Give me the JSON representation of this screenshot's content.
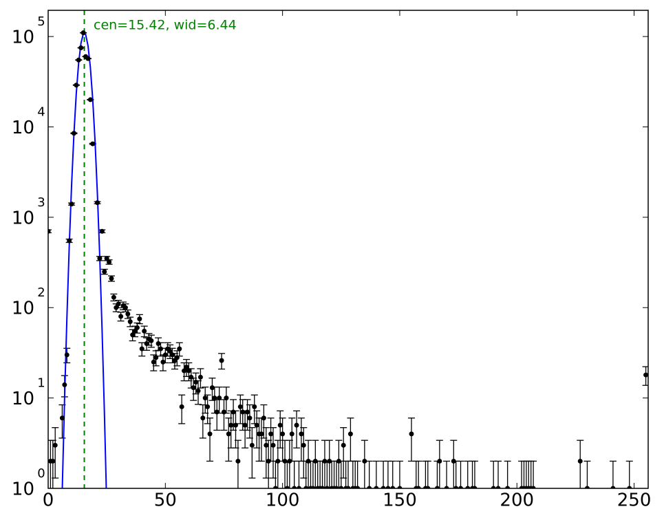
{
  "chart_data": {
    "type": "errorbar",
    "annotation": "cen=15.42, wid=6.44",
    "annotation_color": "#008000",
    "vline": {
      "x": 15.42,
      "color": "#008000"
    },
    "log_y": true,
    "xlim": [
      0,
      256
    ],
    "ylim": [
      1,
      195000
    ],
    "xticks": [
      0,
      50,
      100,
      150,
      200,
      250
    ],
    "yticks": [
      {
        "value": 1,
        "label": "10",
        "exponent": "0"
      },
      {
        "value": 10,
        "label": "10",
        "exponent": "1"
      },
      {
        "value": 100,
        "label": "10",
        "exponent": "2"
      },
      {
        "value": 1000,
        "label": "10",
        "exponent": "3"
      },
      {
        "value": 10000,
        "label": "10",
        "exponent": "4"
      },
      {
        "value": 100000,
        "label": "10",
        "exponent": "5"
      }
    ],
    "color": "#000000",
    "points": [
      [
        0,
        700,
        26.5
      ],
      [
        1,
        2,
        1.4
      ],
      [
        2,
        2,
        1.4
      ],
      [
        3,
        3,
        1.7
      ],
      [
        6,
        6,
        2.4
      ],
      [
        7,
        14,
        3.7
      ],
      [
        8,
        30,
        5.5
      ],
      [
        9,
        550,
        23.5
      ],
      [
        10,
        1400,
        37.4
      ],
      [
        11,
        8500,
        92.2
      ],
      [
        12,
        29000,
        170
      ],
      [
        13,
        55000,
        235
      ],
      [
        14,
        75000,
        274
      ],
      [
        15,
        110000,
        332
      ],
      [
        16,
        60000,
        245
      ],
      [
        17,
        57000,
        239
      ],
      [
        18,
        20000,
        141
      ],
      [
        19,
        6500,
        80.6
      ],
      [
        21,
        1450,
        38.1
      ],
      [
        22,
        350,
        18.7
      ],
      [
        23,
        700,
        26.5
      ],
      [
        24,
        250,
        15.8
      ],
      [
        25,
        350,
        18.7
      ],
      [
        26,
        320,
        17.9
      ],
      [
        27,
        210,
        14.5
      ],
      [
        28,
        130,
        11.4
      ],
      [
        29,
        100,
        10
      ],
      [
        30,
        110,
        10.5
      ],
      [
        31,
        80,
        8.9
      ],
      [
        32,
        105,
        10.2
      ],
      [
        33,
        100,
        10
      ],
      [
        34,
        85,
        9.2
      ],
      [
        35,
        70,
        8.4
      ],
      [
        36,
        50,
        7.1
      ],
      [
        37,
        55,
        7.4
      ],
      [
        38,
        60,
        7.7
      ],
      [
        39,
        75,
        8.7
      ],
      [
        40,
        35,
        5.9
      ],
      [
        41,
        55,
        7.4
      ],
      [
        42,
        40,
        6.3
      ],
      [
        43,
        45,
        6.7
      ],
      [
        44,
        43,
        6.6
      ],
      [
        45,
        25,
        5
      ],
      [
        46,
        28,
        5.3
      ],
      [
        47,
        40,
        6.3
      ],
      [
        48,
        35,
        5.9
      ],
      [
        49,
        25,
        5
      ],
      [
        50,
        30,
        5.5
      ],
      [
        51,
        35,
        5.9
      ],
      [
        52,
        33,
        5.7
      ],
      [
        53,
        30,
        5.5
      ],
      [
        54,
        26,
        5.1
      ],
      [
        55,
        28,
        5.3
      ],
      [
        56,
        35,
        5.9
      ],
      [
        57,
        8,
        2.8
      ],
      [
        58,
        20,
        4.5
      ],
      [
        59,
        22,
        4.7
      ],
      [
        60,
        20,
        4.5
      ],
      [
        61,
        17,
        4.1
      ],
      [
        62,
        13,
        3.6
      ],
      [
        63,
        15,
        3.9
      ],
      [
        64,
        12,
        3.5
      ],
      [
        65,
        17,
        4.1
      ],
      [
        66,
        6,
        2.4
      ],
      [
        67,
        10,
        3.2
      ],
      [
        68,
        8,
        2.8
      ],
      [
        69,
        4,
        2
      ],
      [
        70,
        13,
        3.6
      ],
      [
        71,
        10,
        3.2
      ],
      [
        72,
        7,
        2.6
      ],
      [
        73,
        10,
        3.2
      ],
      [
        74,
        26,
        5.1
      ],
      [
        75,
        7,
        2.6
      ],
      [
        76,
        10,
        3.2
      ],
      [
        77,
        4,
        2
      ],
      [
        78,
        5,
        2.2
      ],
      [
        79,
        7,
        2.6
      ],
      [
        80,
        5,
        2.2
      ],
      [
        81,
        2,
        1.4
      ],
      [
        82,
        8,
        2.8
      ],
      [
        83,
        7,
        2.6
      ],
      [
        84,
        5,
        2.2
      ],
      [
        85,
        7,
        2.6
      ],
      [
        86,
        6,
        2.4
      ],
      [
        87,
        3,
        1.7
      ],
      [
        88,
        8,
        2.8
      ],
      [
        89,
        5,
        2.2
      ],
      [
        90,
        4,
        2
      ],
      [
        91,
        4,
        2
      ],
      [
        92,
        6,
        2.4
      ],
      [
        93,
        3,
        1.7
      ],
      [
        94,
        2,
        1.4
      ],
      [
        95,
        4,
        2
      ],
      [
        96,
        3,
        1.7
      ],
      [
        97,
        1,
        1
      ],
      [
        98,
        2,
        1.4
      ],
      [
        99,
        5,
        2.2
      ],
      [
        100,
        4,
        2
      ],
      [
        101,
        2,
        1.4
      ],
      [
        102,
        1,
        1
      ],
      [
        103,
        2,
        1.4
      ],
      [
        104,
        4,
        2
      ],
      [
        105,
        1,
        1
      ],
      [
        106,
        5,
        2.2
      ],
      [
        107,
        1,
        1
      ],
      [
        108,
        4,
        2
      ],
      [
        109,
        3,
        1.7
      ],
      [
        110,
        1,
        1
      ],
      [
        111,
        2,
        1.4
      ],
      [
        112,
        1,
        1
      ],
      [
        113,
        1,
        1
      ],
      [
        114,
        2,
        1.4
      ],
      [
        115,
        1,
        1
      ],
      [
        116,
        1,
        1
      ],
      [
        117,
        1,
        1
      ],
      [
        118,
        2,
        1.4
      ],
      [
        119,
        1,
        1
      ],
      [
        120,
        2,
        1.4
      ],
      [
        121,
        1,
        1
      ],
      [
        122,
        1,
        1
      ],
      [
        123,
        1,
        1
      ],
      [
        124,
        2,
        1.4
      ],
      [
        125,
        1,
        1
      ],
      [
        126,
        3,
        1.7
      ],
      [
        127,
        1,
        1
      ],
      [
        128,
        1,
        1
      ],
      [
        129,
        4,
        2
      ],
      [
        130,
        1,
        1
      ],
      [
        131,
        1,
        1
      ],
      [
        132,
        1,
        1
      ],
      [
        135,
        2,
        1.4
      ],
      [
        137,
        1,
        1
      ],
      [
        140,
        1,
        1
      ],
      [
        143,
        1,
        1
      ],
      [
        145,
        1,
        1
      ],
      [
        147,
        1,
        1
      ],
      [
        150,
        1,
        1
      ],
      [
        155,
        4,
        2
      ],
      [
        157,
        1,
        1
      ],
      [
        158,
        1,
        1
      ],
      [
        161,
        1,
        1
      ],
      [
        162,
        1,
        1
      ],
      [
        166,
        1,
        1
      ],
      [
        167,
        2,
        1.4
      ],
      [
        170,
        1,
        1
      ],
      [
        173,
        2,
        1.4
      ],
      [
        174,
        1,
        1
      ],
      [
        176,
        1,
        1
      ],
      [
        179,
        1,
        1
      ],
      [
        181,
        1,
        1
      ],
      [
        182,
        1,
        1
      ],
      [
        190,
        1,
        1
      ],
      [
        192,
        1,
        1
      ],
      [
        196,
        1,
        1
      ],
      [
        202,
        1,
        1
      ],
      [
        203,
        1,
        1
      ],
      [
        204,
        1,
        1
      ],
      [
        205,
        1,
        1
      ],
      [
        206,
        1,
        1
      ],
      [
        207,
        1,
        1
      ],
      [
        227,
        2,
        1.4
      ],
      [
        230,
        1,
        1
      ],
      [
        241,
        1,
        1
      ],
      [
        248,
        1,
        1
      ],
      [
        255,
        18,
        4.2
      ]
    ],
    "fit": {
      "color": "#0000ff",
      "x": [
        6,
        7,
        8,
        9,
        10,
        11,
        12,
        13,
        14,
        15,
        16,
        17,
        18,
        19,
        20,
        21,
        22,
        23,
        24,
        25
      ],
      "values": [
        0.94,
        9.8,
        78,
        486,
        2300,
        8400,
        23600,
        50900,
        84400,
        107500,
        105300,
        79200,
        45800,
        20300,
        6960,
        1820,
        368,
        57,
        6.8,
        0.6
      ]
    }
  }
}
